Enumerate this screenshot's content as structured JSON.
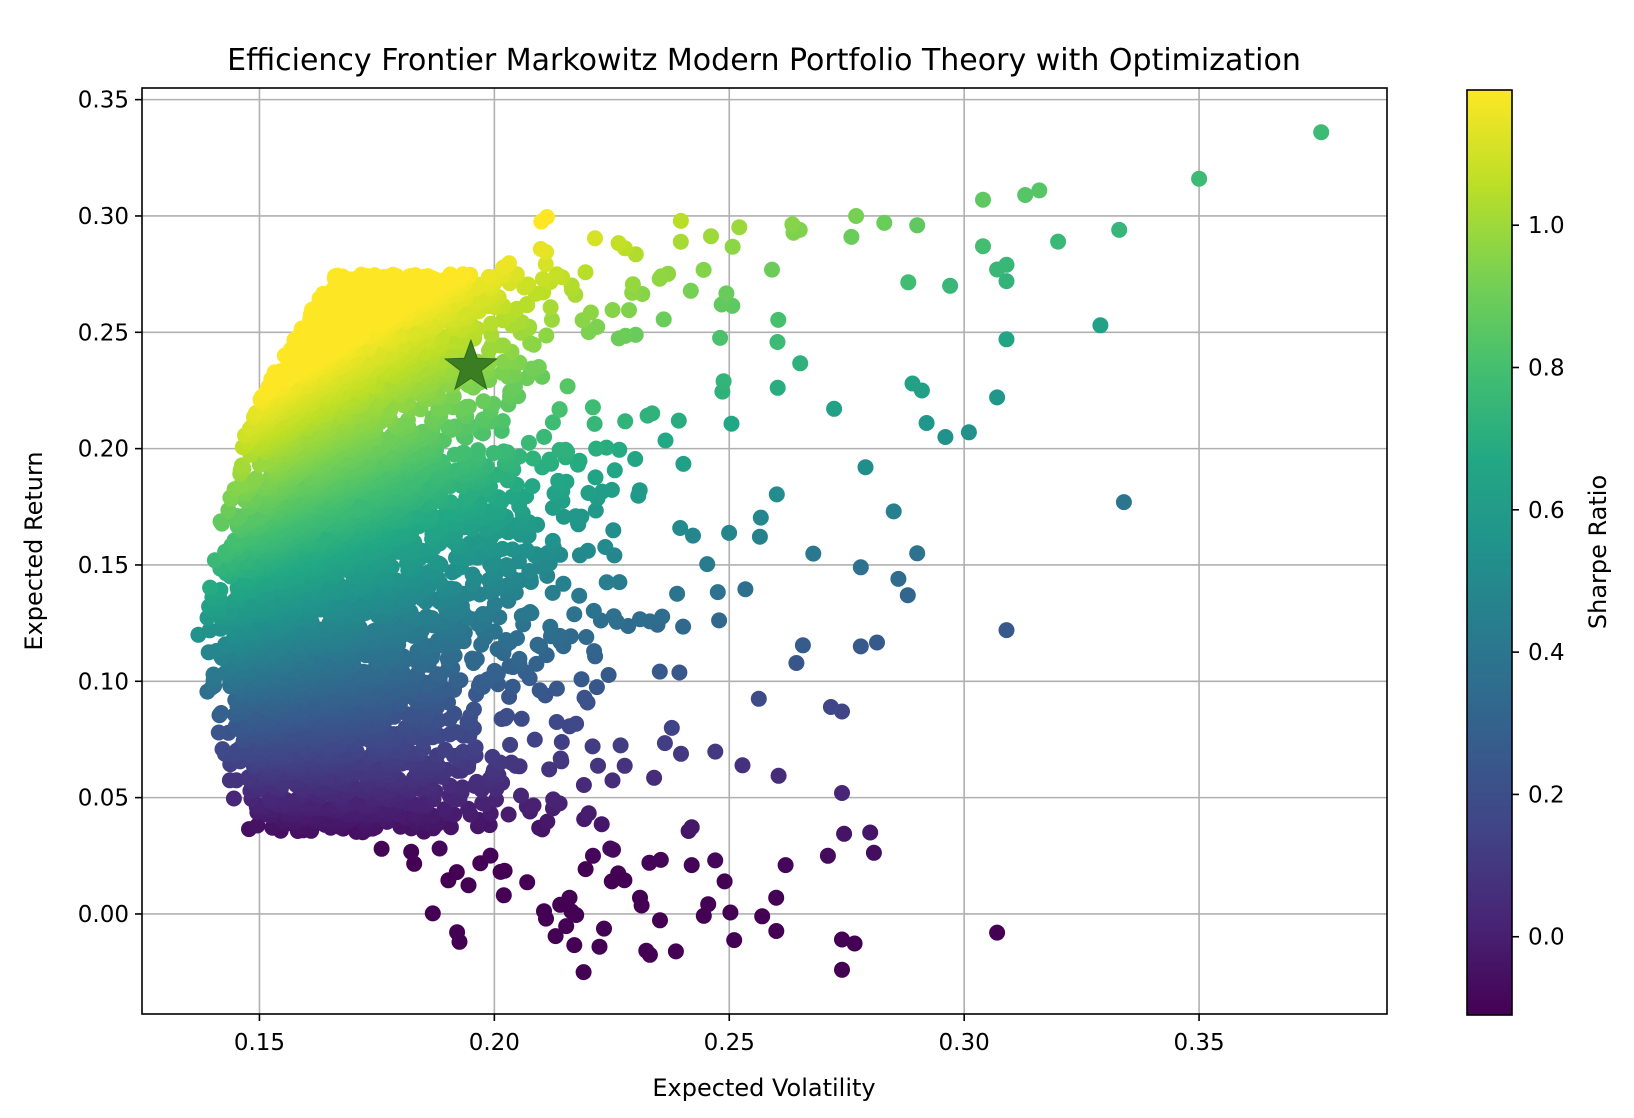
{
  "chart_data": {
    "type": "scatter",
    "title": "Efficiency Frontier Markowitz Modern Portfolio Theory with Optimization",
    "xlabel": "Expected Volatility",
    "ylabel": "Expected Return",
    "xlim": [
      0.125,
      0.39
    ],
    "ylim": [
      -0.043,
      0.355
    ],
    "xticks": [
      "0.15",
      "0.20",
      "0.25",
      "0.30",
      "0.35"
    ],
    "yticks": [
      "0.00",
      "0.05",
      "0.10",
      "0.15",
      "0.20",
      "0.25",
      "0.30",
      "0.35"
    ],
    "grid": true,
    "colormap": "viridis",
    "colorbar": {
      "label": "Sharpe Ratio",
      "range": [
        -0.11,
        1.19
      ],
      "ticks": [
        "0.0",
        "0.2",
        "0.4",
        "0.6",
        "0.8",
        "1.0"
      ]
    },
    "optimal_portfolio": {
      "x": 0.195,
      "y": 0.235,
      "marker": "star",
      "color": "#3a7d22"
    },
    "sample_points": [
      [
        0.376,
        0.336
      ],
      [
        0.35,
        0.316
      ],
      [
        0.333,
        0.294
      ],
      [
        0.329,
        0.253
      ],
      [
        0.334,
        0.177
      ],
      [
        0.309,
        0.122
      ],
      [
        0.307,
        -0.008
      ],
      [
        0.32,
        0.289
      ],
      [
        0.316,
        0.311
      ],
      [
        0.313,
        0.309
      ],
      [
        0.304,
        0.307
      ],
      [
        0.304,
        0.287
      ],
      [
        0.309,
        0.279
      ],
      [
        0.307,
        0.277
      ],
      [
        0.309,
        0.272
      ],
      [
        0.309,
        0.247
      ],
      [
        0.307,
        0.222
      ],
      [
        0.301,
        0.207
      ],
      [
        0.296,
        0.205
      ],
      [
        0.297,
        0.27
      ],
      [
        0.29,
        0.296
      ],
      [
        0.283,
        0.297
      ],
      [
        0.292,
        0.211
      ],
      [
        0.291,
        0.225
      ],
      [
        0.289,
        0.228
      ],
      [
        0.285,
        0.173
      ],
      [
        0.29,
        0.155
      ],
      [
        0.288,
        0.137
      ],
      [
        0.286,
        0.144
      ],
      [
        0.28,
        0.035
      ],
      [
        0.278,
        0.115
      ],
      [
        0.278,
        0.149
      ],
      [
        0.279,
        0.192
      ],
      [
        0.277,
        0.3
      ],
      [
        0.276,
        0.291
      ],
      [
        0.274,
        0.087
      ],
      [
        0.274,
        0.052
      ],
      [
        0.274,
        -0.011
      ],
      [
        0.274,
        -0.024
      ],
      [
        0.271,
        0.025
      ],
      [
        0.265,
        0.294
      ],
      [
        0.262,
        0.021
      ],
      [
        0.26,
        0.007
      ],
      [
        0.257,
        -0.001
      ],
      [
        0.249,
        0.014
      ],
      [
        0.247,
        0.023
      ],
      [
        0.242,
        0.021
      ],
      [
        0.233,
        0.022
      ],
      [
        0.231,
        0.007
      ],
      [
        0.225,
        0.014
      ],
      [
        0.221,
        0.025
      ],
      [
        0.219,
        -0.025
      ],
      [
        0.216,
        0.007
      ],
      [
        0.211,
        -0.002
      ],
      [
        0.202,
        0.008
      ],
      [
        0.192,
        0.018
      ],
      [
        0.176,
        0.028
      ],
      [
        0.148,
        0.077
      ],
      [
        0.137,
        0.12
      ],
      [
        0.143,
        0.148
      ]
    ]
  }
}
